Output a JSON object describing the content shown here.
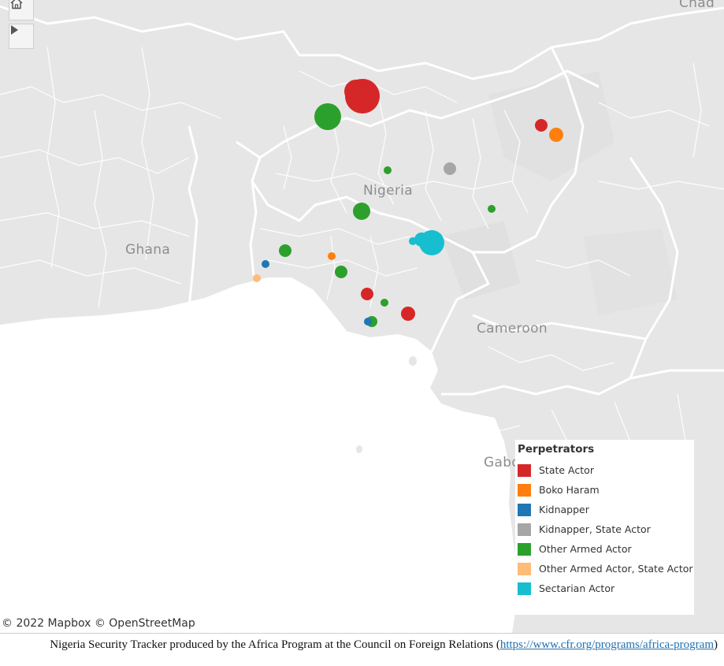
{
  "map": {
    "labels": {
      "nigeria": "Nigeria",
      "ghana": "Ghana",
      "cameroon": "Cameroon",
      "gabon": "Gabo",
      "chad": "Chad"
    },
    "colors": {
      "land": "#e6e6e6",
      "sea": "#ffffff",
      "border": "#ffffff"
    },
    "controls": {
      "home_icon": "home-icon",
      "play_icon": "play-icon"
    },
    "attribution": "© 2022 Mapbox  © OpenStreetMap"
  },
  "legend": {
    "title": "Perpetrators",
    "items": [
      {
        "label": "State Actor",
        "color": "#d62728"
      },
      {
        "label": "Boko Haram",
        "color": "#ff7f0e"
      },
      {
        "label": "Kidnapper",
        "color": "#1f77b4"
      },
      {
        "label": "Kidnapper, State Actor",
        "color": "#a6a6a6"
      },
      {
        "label": "Other Armed Actor",
        "color": "#2ca02c"
      },
      {
        "label": "Other Armed Actor, State Actor",
        "color": "#ffbb78"
      },
      {
        "label": "Sectarian Actor",
        "color": "#17becf"
      }
    ]
  },
  "footer": {
    "text": "Nigeria Security Tracker produced by the Africa Program at the Council on Foreign Relations (",
    "link_text": "https://www.cfr.org/programs/africa-program",
    "suffix": ")"
  }
}
